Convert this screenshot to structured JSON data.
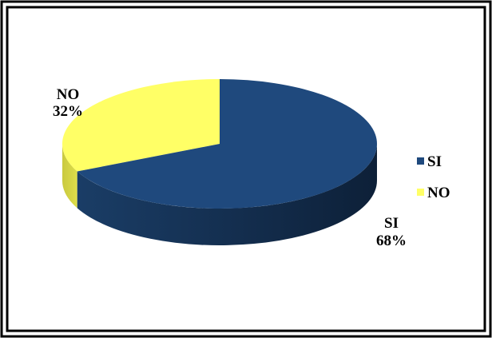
{
  "chart_data": {
    "type": "pie",
    "title": "",
    "categories": [
      "SI",
      "NO"
    ],
    "values": [
      68,
      32
    ],
    "value_suffix": "%",
    "colors": [
      "#1f497d",
      "#ffff66"
    ],
    "legend_placement": "right",
    "style": "3d"
  },
  "labels": {
    "si_name": "SI",
    "si_pct": "68%",
    "no_name": "NO",
    "no_pct": "32%"
  },
  "legend": {
    "si": "SI",
    "no": "NO"
  }
}
